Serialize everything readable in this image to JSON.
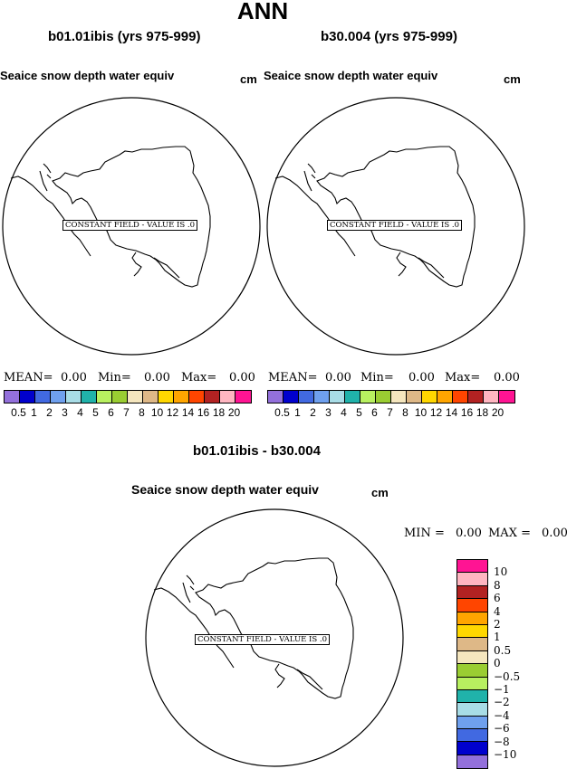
{
  "main_title": "ANN",
  "panels": [
    {
      "case": "b01.01ibis (yrs 975-999)",
      "variable": "Seaice snow depth water equiv",
      "units": "cm",
      "constant_field": "CONSTANT FIELD - VALUE IS .0",
      "stats": {
        "mean_label": "MEAN=",
        "mean": "0.00",
        "min_label": "Min=",
        "min": "0.00",
        "max_label": "Max=",
        "max": "0.00"
      }
    },
    {
      "case": "b30.004 (yrs 975-999)",
      "variable": "Seaice snow depth water equiv",
      "units": "cm",
      "constant_field": "CONSTANT FIELD - VALUE IS .0",
      "stats": {
        "mean_label": "MEAN=",
        "mean": "0.00",
        "min_label": "Min=",
        "min": "0.00",
        "max_label": "Max=",
        "max": "0.00"
      }
    }
  ],
  "colorbar": {
    "colors": [
      "#9370DB",
      "#0000CD",
      "#4169E1",
      "#6FA0EE",
      "#A8DCE6",
      "#20B2AA",
      "#B8F060",
      "#9ACD32",
      "#F5E6BE",
      "#DEB887",
      "#FFD700",
      "#FFA500",
      "#FF4500",
      "#B22222",
      "#FFB6C1",
      "#FF1493"
    ],
    "labels": [
      "0.5",
      "1",
      "2",
      "3",
      "4",
      "5",
      "6",
      "7",
      "8",
      "10",
      "12",
      "14",
      "16",
      "18",
      "20"
    ]
  },
  "diff": {
    "title": "b01.01ibis - b30.004",
    "variable": "Seaice snow depth water equiv",
    "units": "cm",
    "constant_field": "CONSTANT FIELD - VALUE IS .0",
    "min_label": "MIN =",
    "min": "0.00",
    "max_label": "MAX =",
    "max": "0.00",
    "colors": [
      "#FF1493",
      "#FFB6C1",
      "#B22222",
      "#FF4500",
      "#FFA500",
      "#FFD700",
      "#DEB887",
      "#F5E6BE",
      "#9ACD32",
      "#B8F060",
      "#20B2AA",
      "#A8DCE6",
      "#6FA0EE",
      "#4169E1",
      "#0000CD",
      "#9370DB"
    ],
    "labels": [
      "10",
      "8",
      "6",
      "4",
      "2",
      "1",
      "0.5",
      "0",
      "−0.5",
      "−1",
      "−2",
      "−4",
      "−6",
      "−8",
      "−10"
    ]
  }
}
